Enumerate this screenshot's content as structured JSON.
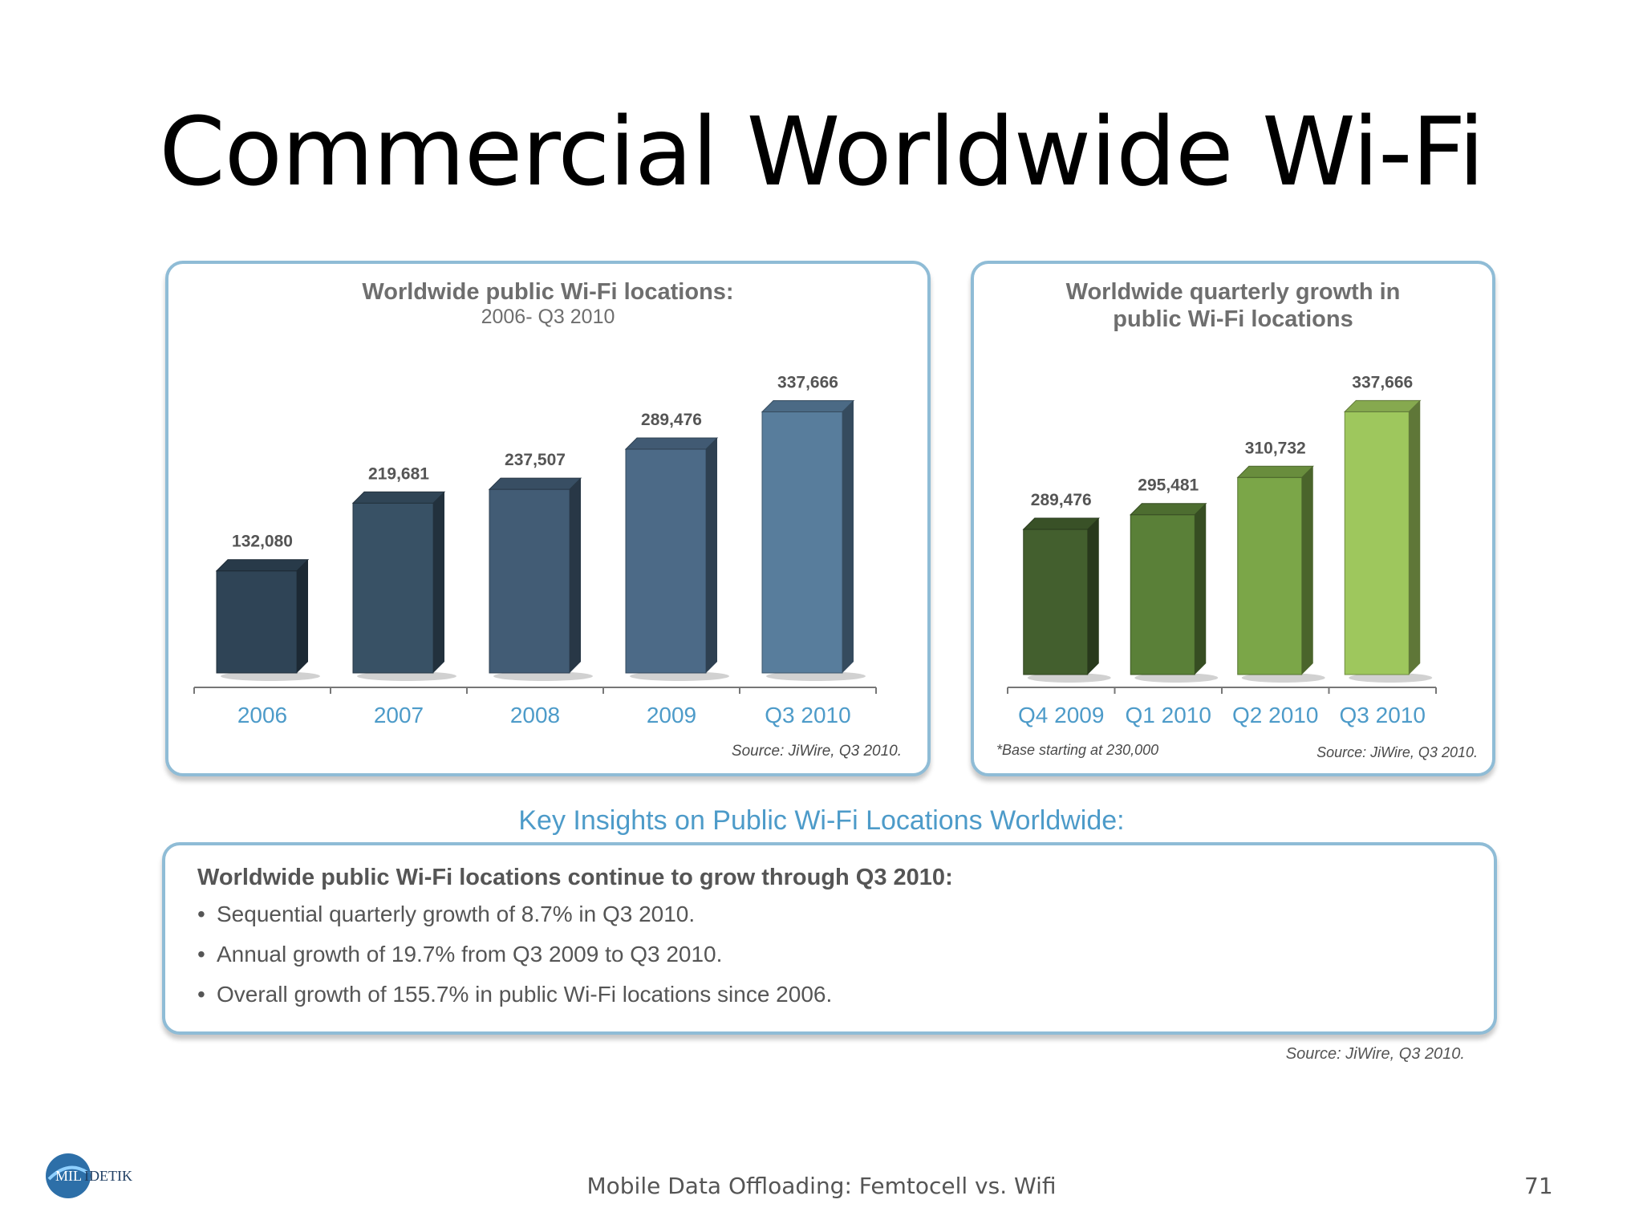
{
  "slide": {
    "title": "Commercial Worldwide Wi-Fi",
    "footer": "Mobile Data Offloading: Femtocell vs. Wifi",
    "page_number": "71",
    "logo_text": "MILIDETIK",
    "source_note": "Source: JiWire, Q3 2010."
  },
  "insights": {
    "heading": "Key Insights on Public Wi-Fi Locations Worldwide:",
    "lead": "Worldwide public Wi-Fi locations continue to grow through Q3 2010:",
    "bullets": [
      "Sequential quarterly growth of 8.7% in Q3 2010.",
      "Annual growth of 19.7% from Q3 2009 to Q3 2010.",
      "Overall growth of 155.7% in public Wi-Fi locations since 2006."
    ]
  },
  "colors": {
    "accent_blue": "#4d9bc9",
    "panel_border": "#8fbcd6"
  },
  "chart_data": [
    {
      "type": "bar",
      "title": "Worldwide public Wi-Fi locations:",
      "subtitle": "2006- Q3 2010",
      "categories": [
        "2006",
        "2007",
        "2008",
        "2009",
        "Q3 2010"
      ],
      "values": [
        132080,
        219681,
        237507,
        289476,
        337666
      ],
      "value_labels": [
        "132,080",
        "219,681",
        "237,507",
        "289,476",
        "337,666"
      ],
      "ylim": [
        0,
        360000
      ],
      "grid": false,
      "bar_colors": [
        "#2f4456",
        "#385165",
        "#425c75",
        "#4c6a87",
        "#587d9c"
      ],
      "source": "Source: JiWire, Q3 2010."
    },
    {
      "type": "bar",
      "title": "Worldwide quarterly growth in public Wi-Fi locations",
      "categories": [
        "Q4 2009",
        "Q1 2010",
        "Q2 2010",
        "Q3 2010"
      ],
      "values": [
        289476,
        295481,
        310732,
        337666
      ],
      "value_labels": [
        "289,476",
        "295,481",
        "310,732",
        "337,666"
      ],
      "ylim": [
        230000,
        345000
      ],
      "grid": false,
      "bar_colors": [
        "#435f2e",
        "#5a8038",
        "#7ba648",
        "#9ec75d"
      ],
      "footnote": "*Base starting at 230,000",
      "source": "Source: JiWire, Q3 2010."
    }
  ]
}
